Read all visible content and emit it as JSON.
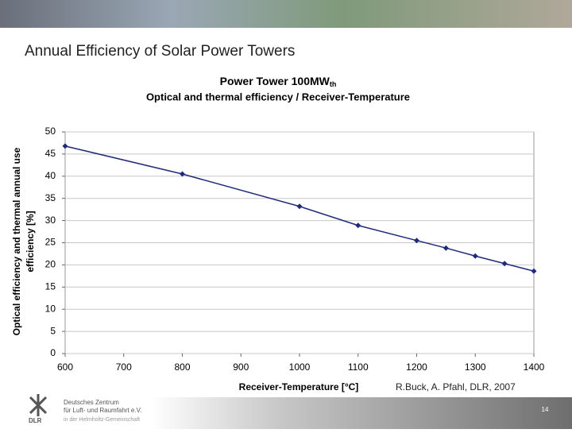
{
  "slide": {
    "title": "Annual Efficiency of Solar Power Towers",
    "credit": "R.Buck, A. Pfahl, DLR, 2007",
    "page_number": "14",
    "logo": {
      "mark": "DLR",
      "lines": [
        "Deutsches Zentrum",
        "für Luft- und Raumfahrt e.V.",
        "in der Helmholtz-Gemeinschaft"
      ]
    }
  },
  "chart_data": {
    "type": "line",
    "title": "Power Tower 100MW",
    "title_subscript": "th",
    "subtitle": "Optical and thermal efficiency / Receiver-Temperature",
    "x_label": "Receiver-Temperature [°C]",
    "y_label": [
      "Optical efficiency and thermal annual use",
      "efficiency [%]"
    ],
    "x": [
      600,
      800,
      1000,
      1100,
      1200,
      1250,
      1300,
      1350,
      1400
    ],
    "series": [
      {
        "name": "Efficiency",
        "color": "#1f2a7a",
        "values": [
          46.8,
          40.5,
          33.2,
          28.9,
          25.5,
          23.8,
          22.0,
          20.3,
          18.6
        ]
      }
    ],
    "xlim": [
      600,
      1400
    ],
    "xticks": [
      600,
      700,
      800,
      900,
      1000,
      1100,
      1200,
      1300,
      1400
    ],
    "ylim": [
      0,
      50
    ],
    "yticks": [
      0,
      5,
      10,
      15,
      20,
      25,
      30,
      35,
      40,
      45,
      50
    ],
    "grid": true
  }
}
